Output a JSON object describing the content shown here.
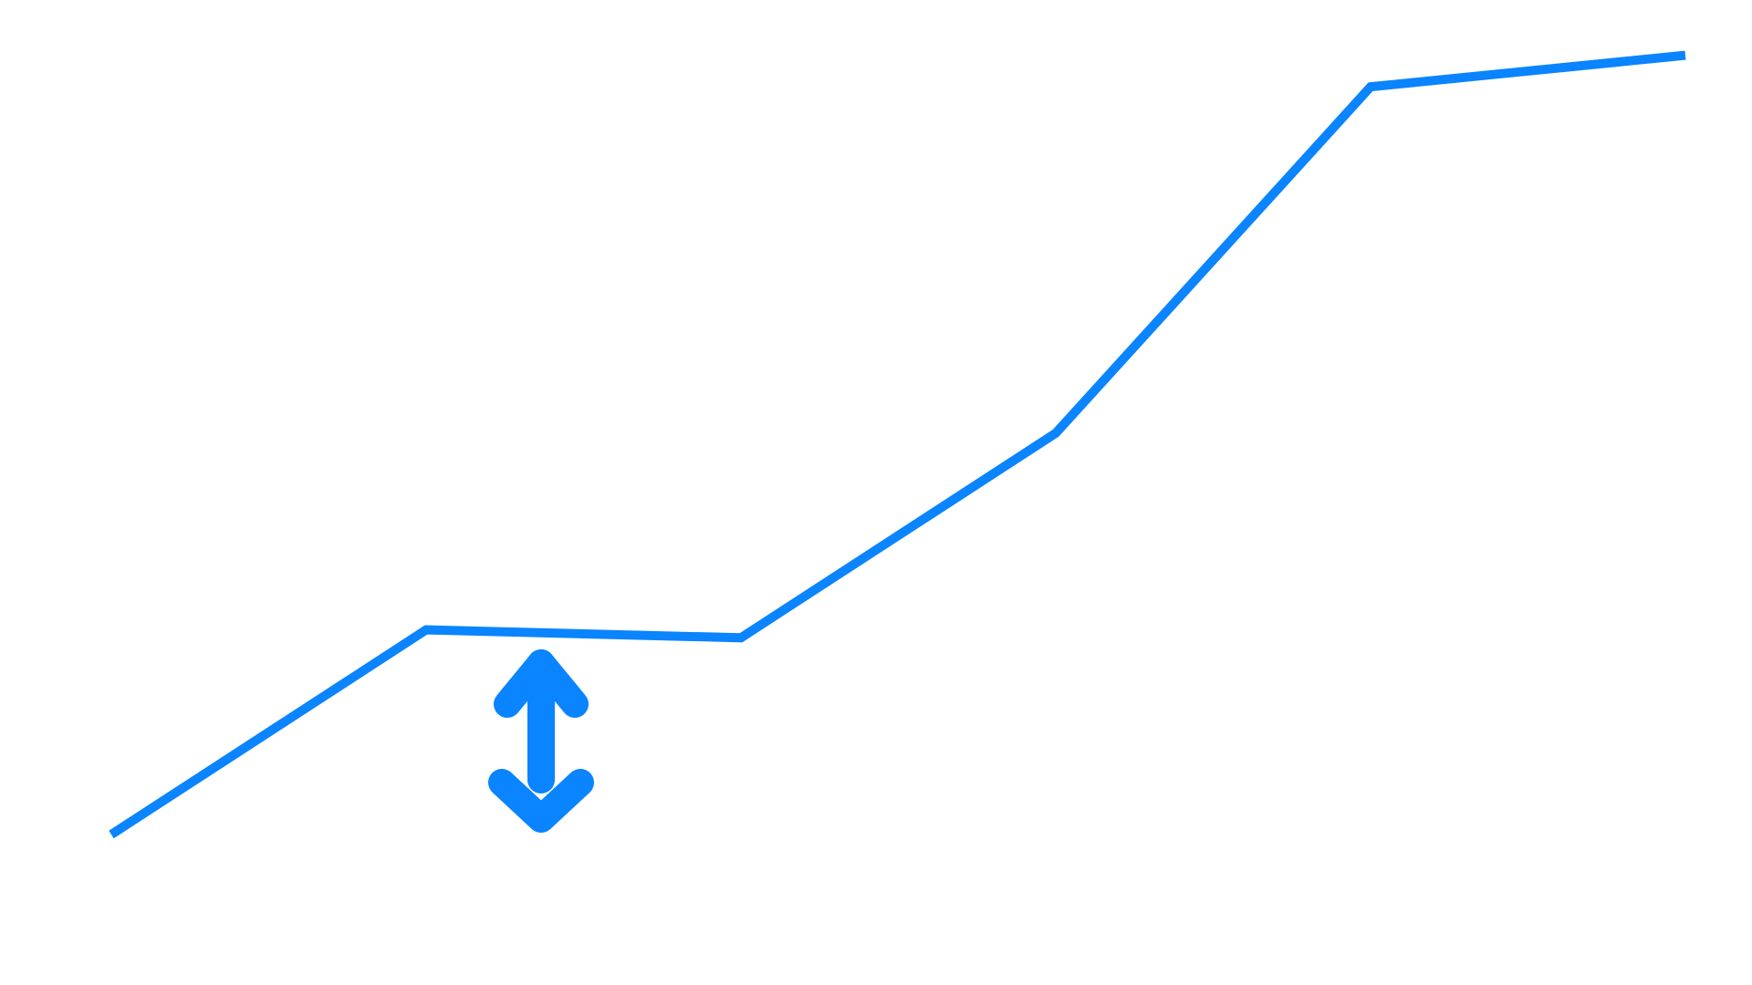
{
  "chart_data": {
    "type": "line",
    "title": "",
    "xlabel": "",
    "ylabel": "",
    "x": [
      0,
      1,
      2,
      3,
      4,
      5
    ],
    "series": [
      {
        "values": [
          0,
          0.26,
          0.25,
          0.51,
          0.95,
          0.99
        ]
      }
    ],
    "xlim": [
      0,
      5
    ],
    "ylim": [
      0,
      1
    ],
    "grid": false,
    "legend": "none",
    "axes_visible": false,
    "line_color": "#0A84FF"
  },
  "annotation": {
    "icon": "up-down-arrow-icon",
    "color": "#0A84FF"
  }
}
